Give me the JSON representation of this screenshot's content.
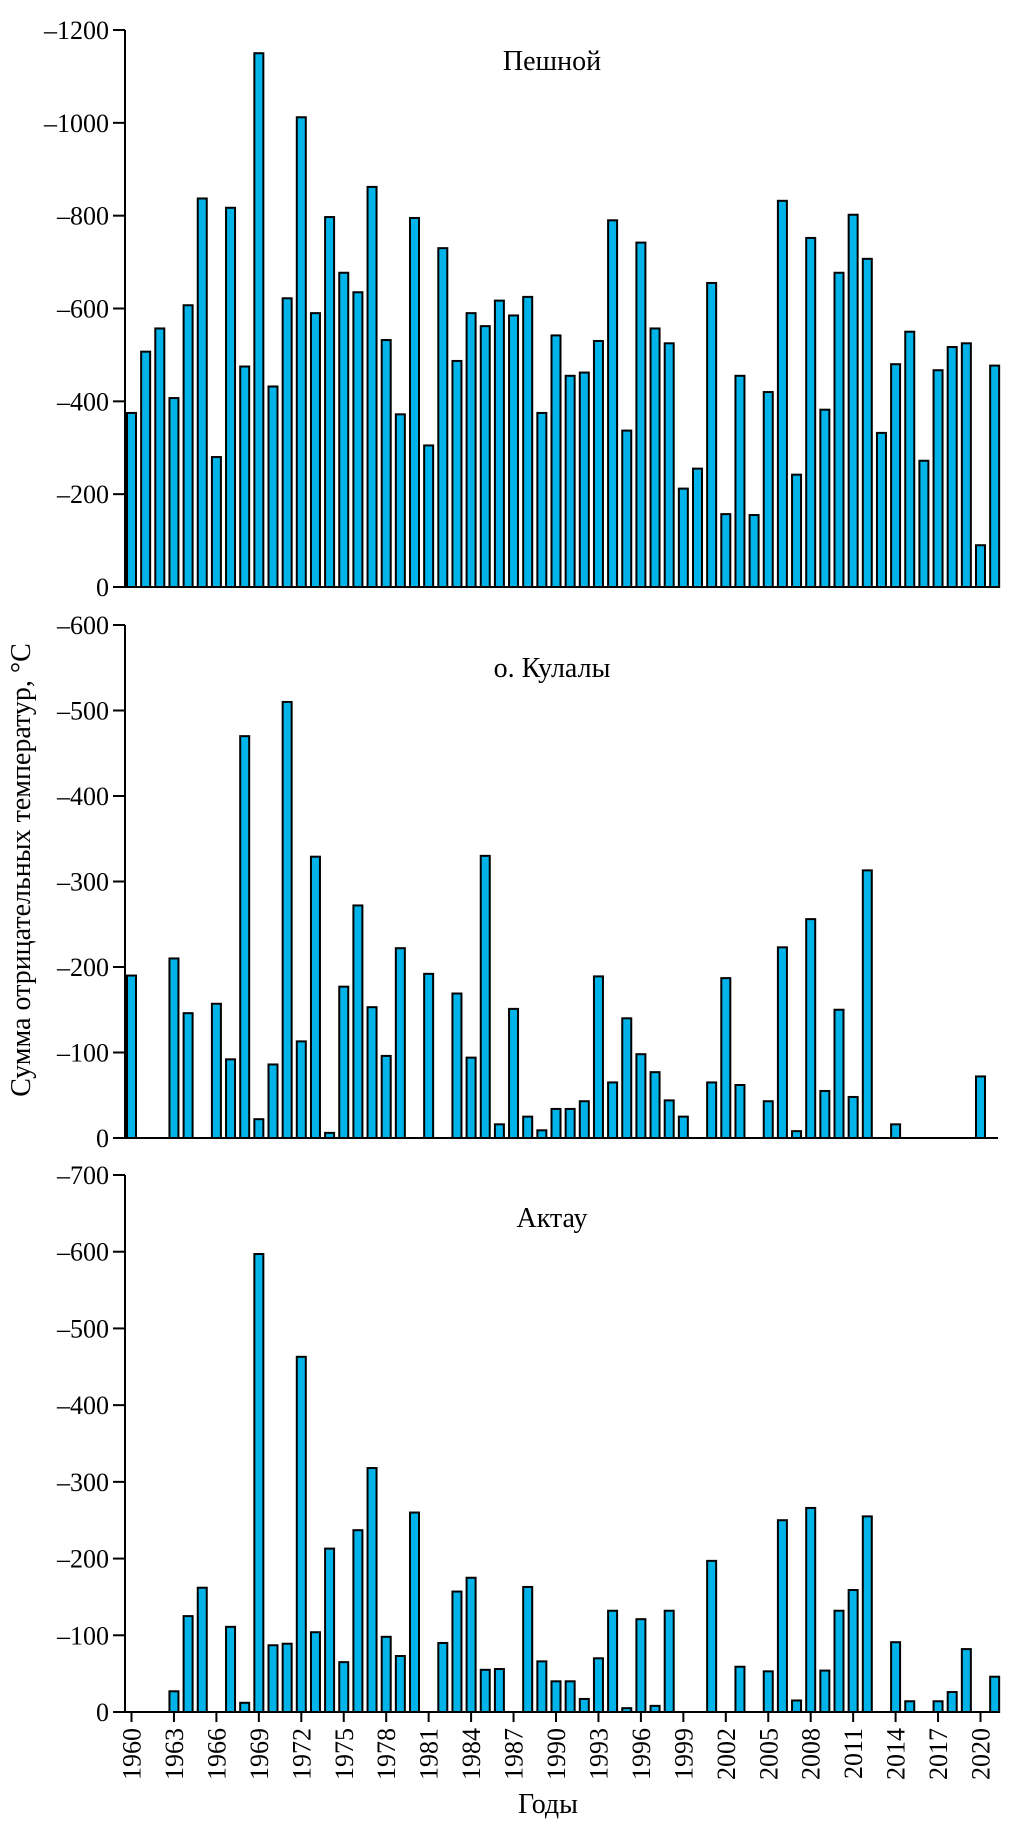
{
  "chart_data": {
    "type": "bar",
    "ylabel": "Сумма отрицательных температур, °С",
    "xlabel": "Годы",
    "x_tick_labels": [
      "1960",
      "1963",
      "1966",
      "1969",
      "1972",
      "1975",
      "1978",
      "1981",
      "1984",
      "1987",
      "1990",
      "1993",
      "1996",
      "1999",
      "2002",
      "2005",
      "2008",
      "2011",
      "2014",
      "2017",
      "2020"
    ],
    "x_tick_years": [
      1960,
      1963,
      1966,
      1969,
      1972,
      1975,
      1978,
      1981,
      1984,
      1987,
      1990,
      1993,
      1996,
      1999,
      2002,
      2005,
      2008,
      2011,
      2014,
      2017,
      2020
    ],
    "x_range": [
      1960,
      2021
    ],
    "years": [
      1960,
      1961,
      1962,
      1963,
      1964,
      1965,
      1966,
      1967,
      1968,
      1969,
      1970,
      1971,
      1972,
      1973,
      1974,
      1975,
      1976,
      1977,
      1978,
      1979,
      1980,
      1981,
      1982,
      1983,
      1984,
      1985,
      1986,
      1987,
      1988,
      1989,
      1990,
      1991,
      1992,
      1993,
      1994,
      1995,
      1996,
      1997,
      1998,
      1999,
      2000,
      2001,
      2002,
      2003,
      2004,
      2005,
      2006,
      2007,
      2008,
      2009,
      2010,
      2011,
      2012,
      2013,
      2014,
      2015,
      2016,
      2017,
      2018,
      2019,
      2020,
      2021
    ],
    "panels": [
      {
        "title": "Пешной",
        "ylim": [
          0,
          -1200
        ],
        "y_ticks": [
          0,
          -200,
          -400,
          -600,
          -800,
          -1000,
          -1200
        ],
        "y_tick_labels": [
          "0",
          "–200",
          "–400",
          "–600",
          "–800",
          "–1000",
          "–1200"
        ],
        "values": [
          -375,
          -507,
          -557,
          -407,
          -607,
          -837,
          -280,
          -817,
          -475,
          -1150,
          -432,
          -622,
          -1012,
          -590,
          -797,
          -677,
          -635,
          -862,
          -532,
          -372,
          -795,
          -305,
          -730,
          -487,
          -590,
          -562,
          -617,
          -585,
          -625,
          -375,
          -542,
          -455,
          -462,
          -530,
          -790,
          -337,
          -742,
          -557,
          -525,
          -212,
          -255,
          -655,
          -157,
          -455,
          -155,
          -420,
          -832,
          -242,
          -752,
          -382,
          -677,
          -802,
          -707,
          -332,
          -480,
          -550,
          -272,
          -467,
          -517,
          -525,
          -90,
          -477
        ]
      },
      {
        "title": "о. Кулалы",
        "ylim": [
          0,
          -600
        ],
        "y_ticks": [
          0,
          -100,
          -200,
          -300,
          -400,
          -500,
          -600
        ],
        "y_tick_labels": [
          "0",
          "–100",
          "–200",
          "–300",
          "–400",
          "–500",
          "–600"
        ],
        "values": [
          -190,
          0,
          0,
          -210,
          -146,
          0,
          -157,
          -92,
          -470,
          -22,
          -86,
          -510,
          -113,
          -329,
          -6,
          -177,
          -272,
          -153,
          -96,
          -222,
          0,
          -192,
          0,
          -169,
          -94,
          -330,
          -16,
          -151,
          -25,
          -9,
          -34,
          -34,
          -43,
          -189,
          -65,
          -140,
          -98,
          -77,
          -44,
          -25,
          0,
          -65,
          -187,
          -62,
          0,
          -43,
          -223,
          -8,
          -256,
          -55,
          -150,
          -48,
          -313,
          0,
          -16,
          0,
          0,
          0,
          0,
          0,
          -72,
          0
        ]
      },
      {
        "title": "Актау",
        "ylim": [
          0,
          -700
        ],
        "y_ticks": [
          0,
          -100,
          -200,
          -300,
          -400,
          -500,
          -600,
          -700
        ],
        "y_tick_labels": [
          "0",
          "–100",
          "–200",
          "–300",
          "–400",
          "–500",
          "–600",
          "–700"
        ],
        "values": [
          0,
          0,
          0,
          -27,
          -125,
          -162,
          0,
          -111,
          -12,
          -597,
          -87,
          -89,
          -463,
          -104,
          -213,
          -65,
          -237,
          -318,
          -98,
          -73,
          -260,
          0,
          -90,
          -157,
          -175,
          -55,
          -56,
          0,
          -163,
          -66,
          -40,
          -40,
          -17,
          -70,
          -132,
          -5,
          -121,
          -8,
          -132,
          0,
          0,
          -197,
          0,
          -59,
          0,
          -53,
          -250,
          -15,
          -266,
          -54,
          -132,
          -159,
          -255,
          0,
          -91,
          -14,
          0,
          -14,
          -26,
          -82,
          0,
          -46
        ]
      }
    ]
  }
}
